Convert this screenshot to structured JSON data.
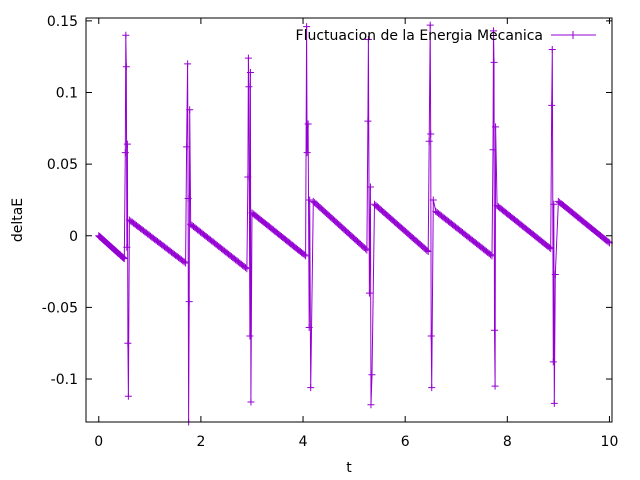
{
  "chart_data": {
    "type": "line",
    "title": "",
    "xlabel": "t",
    "ylabel": "deltaE",
    "xlim": [
      -0.25,
      10.05
    ],
    "ylim": [
      -0.13,
      0.152
    ],
    "x_ticks": [
      0,
      2,
      4,
      6,
      8,
      10
    ],
    "x_tick_labels": [
      "0",
      "2",
      "4",
      "6",
      "8",
      "10"
    ],
    "y_ticks": [
      -0.1,
      -0.05,
      0,
      0.05,
      0.1,
      0.15
    ],
    "y_tick_labels": [
      "-0.1",
      "-0.05",
      "0",
      "0.05",
      "0.1",
      "0.15"
    ],
    "grid": false,
    "legend_position": "top-right",
    "series_color": "#9400d3",
    "series": [
      {
        "name": "Fluctuacion de la Energia Mecanica",
        "segments": [
          {
            "start": [
              0.0,
              0.0
            ],
            "end": [
              0.5,
              -0.016
            ]
          },
          {
            "start": [
              0.6,
              0.011
            ],
            "end": [
              1.7,
              -0.019
            ]
          },
          {
            "start": [
              1.8,
              0.008
            ],
            "end": [
              2.9,
              -0.023
            ]
          },
          {
            "start": [
              3.0,
              0.016
            ],
            "end": [
              4.05,
              -0.014
            ]
          },
          {
            "start": [
              4.2,
              0.024
            ],
            "end": [
              5.25,
              -0.01
            ]
          },
          {
            "start": [
              5.4,
              0.022
            ],
            "end": [
              6.45,
              -0.011
            ]
          },
          {
            "start": [
              6.6,
              0.017
            ],
            "end": [
              7.7,
              -0.014
            ]
          },
          {
            "start": [
              7.8,
              0.021
            ],
            "end": [
              8.85,
              -0.009
            ]
          },
          {
            "start": [
              9.0,
              0.024
            ],
            "end": [
              10.0,
              -0.005
            ]
          }
        ],
        "spikes": [
          {
            "x": [
              0.5,
              0.52,
              0.53,
              0.54,
              0.55,
              0.56,
              0.57,
              0.58,
              0.6
            ],
            "y": [
              -0.016,
              0.058,
              0.14,
              0.118,
              -0.008,
              0.064,
              -0.075,
              -0.112,
              0.011
            ]
          },
          {
            "x": [
              1.7,
              1.72,
              1.74,
              1.75,
              1.76,
              1.77,
              1.78,
              1.8
            ],
            "y": [
              -0.019,
              0.062,
              0.12,
              0.026,
              -0.13,
              -0.046,
              0.088,
              0.008
            ]
          },
          {
            "x": [
              2.9,
              2.92,
              2.93,
              2.94,
              2.96,
              2.97,
              2.98,
              3.0
            ],
            "y": [
              -0.023,
              0.041,
              0.124,
              0.104,
              -0.07,
              0.114,
              -0.116,
              0.016
            ]
          },
          {
            "x": [
              4.05,
              4.07,
              4.08,
              4.1,
              4.12,
              4.13,
              4.15,
              4.2
            ],
            "y": [
              -0.014,
              0.146,
              0.058,
              0.078,
              -0.064,
              0.025,
              -0.106,
              0.024
            ]
          },
          {
            "x": [
              5.25,
              5.27,
              5.28,
              5.3,
              5.32,
              5.33,
              5.35,
              5.4
            ],
            "y": [
              -0.01,
              0.08,
              0.137,
              -0.04,
              0.034,
              -0.118,
              -0.097,
              0.022
            ]
          },
          {
            "x": [
              6.45,
              6.47,
              6.49,
              6.5,
              6.51,
              6.52,
              6.55,
              6.6
            ],
            "y": [
              -0.011,
              0.066,
              0.147,
              0.071,
              -0.07,
              -0.106,
              0.025,
              0.017
            ]
          },
          {
            "x": [
              7.7,
              7.72,
              7.73,
              7.74,
              7.75,
              7.76,
              7.77,
              7.8
            ],
            "y": [
              -0.014,
              0.06,
              0.143,
              0.121,
              -0.066,
              -0.105,
              0.076,
              0.021
            ]
          },
          {
            "x": [
              8.85,
              8.87,
              8.88,
              8.9,
              8.91,
              8.92,
              8.94,
              9.0
            ],
            "y": [
              -0.009,
              0.091,
              0.13,
              -0.088,
              0.022,
              -0.117,
              -0.027,
              0.024
            ]
          }
        ]
      }
    ]
  }
}
